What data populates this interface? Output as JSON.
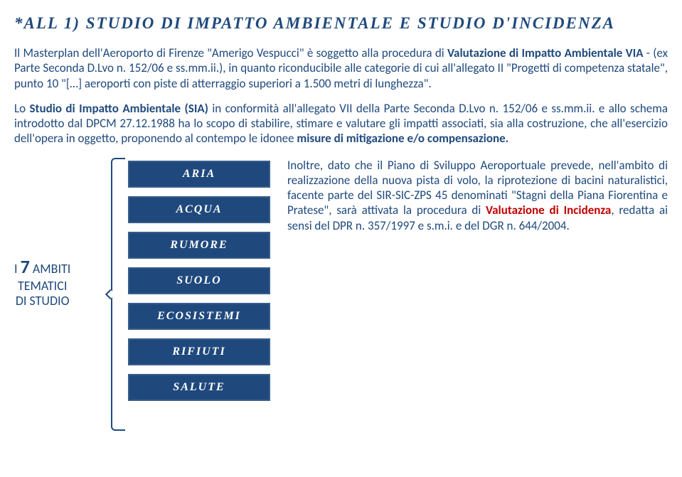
{
  "title": "*ALL 1)   STUDIO DI IMPATTO AMBIENTALE E STUDIO D'INCIDENZA",
  "para1_pre": "Il Masterplan dell'Aeroporto di Firenze \"Amerigo Vespucci\" è soggetto alla procedura di ",
  "para1_bold": "Valutazione di Impatto Ambientale VIA",
  "para1_post": " - (ex Parte Seconda D.Lvo n. 152/06 e ss.mm.ii.), in quanto riconducibile alle categorie di cui all'allegato II \"Progetti di competenza statale\", punto 10 \"[…] aeroporti con piste di atterraggio superiori a 1.500 metri di lunghezza\".",
  "para2_pre": "Lo ",
  "para2_bold1": "Studio di Impatto Ambientale (SIA)",
  "para2_mid": " in conformità all'allegato VII della Parte Seconda D.Lvo n. 152/06 e ss.mm.ii. e allo schema introdotto dal DPCM 27.12.1988 ha lo scopo di stabilire, stimare e valutare gli impatti associati, sia alla costruzione, che all'esercizio dell'opera in oggetto, proponendo al contempo le idonee ",
  "para2_bold2": "misure di mitigazione e/o compensazione.",
  "ambiti_line1_pre": "I ",
  "ambiti_line1_big": "7",
  "ambiti_line1_post": " AMBITI",
  "ambiti_line2": "TEMATICI",
  "ambiti_line3": "DI STUDIO",
  "boxes": [
    "ARIA",
    "ACQUA",
    "RUMORE",
    "SUOLO",
    "ECOSISTEMI",
    "RIFIUTI",
    "SALUTE"
  ],
  "right_pre": "Inoltre, dato che il Piano di Sviluppo Aeroportuale prevede, nell'ambito di realizzazione della nuova pista di volo, la riprotezione di bacini naturalistici, facente parte del SIR-SIC-ZPS 45 denominati \"Stagni della Piana Fiorentina e Pratese\", sarà attivata la procedura di ",
  "right_red": "Valutazione di Incidenza",
  "right_post": ", redatta ai sensi del DPR n. 357/1997 e s.m.i. e del DGR n. 644/2004.",
  "colors": {
    "primary": "#1f497d",
    "accent_red": "#c00000",
    "box_border": "#385d8a",
    "background": "#ffffff"
  },
  "fonts": {
    "title_family": "Georgia serif italic bold",
    "body_family": "Calibri",
    "title_size": 23,
    "body_size": 17,
    "box_size": 16
  }
}
